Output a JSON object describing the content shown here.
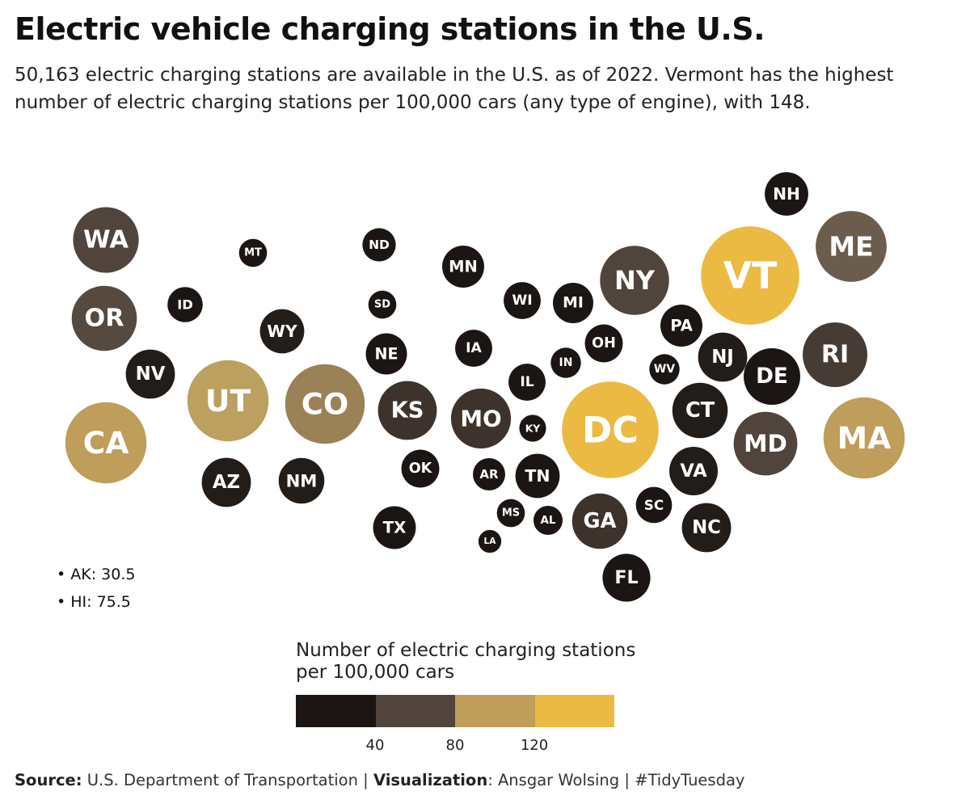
{
  "title": "Electric vehicle charging stations in the U.S.",
  "subtitle": "50,163 electric charging stations are available in the U.S. as of 2022. Vermont has the highest number of electric charging stations per 100,000 cars (any type of engine), with 148.",
  "notes": [
    "• AK: 30.5",
    "• HI: 75.5"
  ],
  "legend": {
    "title_line1": "Number of electric charging stations",
    "title_line2": "per 100,000 cars",
    "colors": [
      "#1b1613",
      "#50443c",
      "#bf9d5a",
      "#ebba42"
    ],
    "tick_labels": [
      "40",
      "80",
      "120"
    ]
  },
  "caption": {
    "source_label": "Source:",
    "source_text": "U.S. Department of Transportation |",
    "viz_label": "Visualization",
    "viz_text": ": Ansgar Wolsing | #TidyTuesday"
  },
  "chart_data": {
    "type": "bubble-tile-map",
    "metric": "Number of electric charging stations per 100,000 cars",
    "color_bins": [
      0,
      40,
      80,
      120
    ],
    "states": [
      {
        "abbr": "WA",
        "value": 66,
        "color": "#50443c"
      },
      {
        "abbr": "OR",
        "value": 65,
        "color": "#564a40"
      },
      {
        "abbr": "NV",
        "value": 37,
        "color": "#231d19"
      },
      {
        "abbr": "CA",
        "value": 101,
        "color": "#bf9d5a"
      },
      {
        "abbr": "ID",
        "value": 19,
        "color": "#1b1613"
      },
      {
        "abbr": "MT",
        "value": 12,
        "color": "#1b1613"
      },
      {
        "abbr": "WY",
        "value": 30,
        "color": "#241e1a"
      },
      {
        "abbr": "UT",
        "value": 101,
        "color": "#bba060"
      },
      {
        "abbr": "AZ",
        "value": 37,
        "color": "#231d19"
      },
      {
        "abbr": "CO",
        "value": 97,
        "color": "#9b8156"
      },
      {
        "abbr": "NM",
        "value": 32,
        "color": "#231d19"
      },
      {
        "abbr": "ND",
        "value": 17,
        "color": "#1b1613"
      },
      {
        "abbr": "SD",
        "value": 12,
        "color": "#1b1613"
      },
      {
        "abbr": "NE",
        "value": 26,
        "color": "#1b1613"
      },
      {
        "abbr": "KS",
        "value": 53,
        "color": "#3d332c"
      },
      {
        "abbr": "OK",
        "value": 22,
        "color": "#1b1613"
      },
      {
        "abbr": "TX",
        "value": 28,
        "color": "#1b1613"
      },
      {
        "abbr": "MN",
        "value": 27,
        "color": "#1b1613"
      },
      {
        "abbr": "IA",
        "value": 21,
        "color": "#1b1613"
      },
      {
        "abbr": "MO",
        "value": 55,
        "color": "#3d332c"
      },
      {
        "abbr": "AR",
        "value": 16,
        "color": "#1b1613"
      },
      {
        "abbr": "LA",
        "value": 8,
        "color": "#1b1613"
      },
      {
        "abbr": "WI",
        "value": 21,
        "color": "#1b1613"
      },
      {
        "abbr": "IL",
        "value": 21,
        "color": "#1b1613"
      },
      {
        "abbr": "MS",
        "value": 12,
        "color": "#1b1613"
      },
      {
        "abbr": "MI",
        "value": 25,
        "color": "#1b1613"
      },
      {
        "abbr": "IN",
        "value": 14,
        "color": "#1b1613"
      },
      {
        "abbr": "KY",
        "value": 11,
        "color": "#1b1613"
      },
      {
        "abbr": "TN",
        "value": 30,
        "color": "#1b1613"
      },
      {
        "abbr": "AL",
        "value": 13,
        "color": "#1b1613"
      },
      {
        "abbr": "OH",
        "value": 22,
        "color": "#1b1613"
      },
      {
        "abbr": "GA",
        "value": 47,
        "color": "#3d332c"
      },
      {
        "abbr": "FL",
        "value": 35,
        "color": "#1b1613"
      },
      {
        "abbr": "NY",
        "value": 73,
        "color": "#50443c"
      },
      {
        "abbr": "PA",
        "value": 27,
        "color": "#1b1613"
      },
      {
        "abbr": "WV",
        "value": 14,
        "color": "#1b1613"
      },
      {
        "abbr": "SC",
        "value": 20,
        "color": "#1b1613"
      },
      {
        "abbr": "NC",
        "value": 37,
        "color": "#231d19"
      },
      {
        "abbr": "VA",
        "value": 36,
        "color": "#231d19"
      },
      {
        "abbr": "DC",
        "value": 143,
        "color": "#ebba42"
      },
      {
        "abbr": "VT",
        "value": 148,
        "color": "#ebba42"
      },
      {
        "abbr": "NH",
        "value": 29,
        "color": "#1b1613"
      },
      {
        "abbr": "ME",
        "value": 77,
        "color": "#6b5c4e"
      },
      {
        "abbr": "NJ",
        "value": 37,
        "color": "#231d19"
      },
      {
        "abbr": "RI",
        "value": 64,
        "color": "#473c35"
      },
      {
        "abbr": "DE",
        "value": 49,
        "color": "#1b1613"
      },
      {
        "abbr": "CT",
        "value": 47,
        "color": "#231d19"
      },
      {
        "abbr": "MD",
        "value": 62,
        "color": "#50443c"
      },
      {
        "abbr": "MA",
        "value": 101,
        "color": "#bf9d5a"
      }
    ]
  }
}
